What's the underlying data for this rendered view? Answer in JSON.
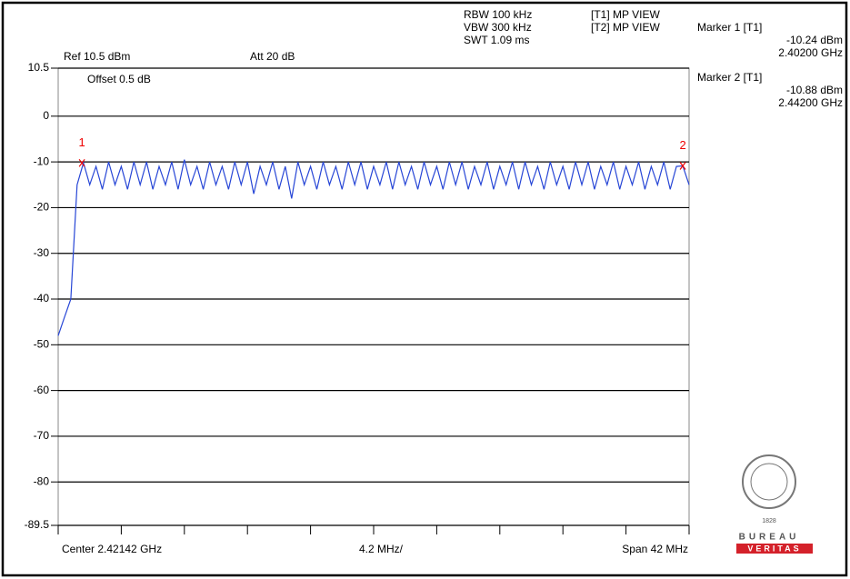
{
  "chart_data": {
    "type": "line",
    "header": {
      "rbw": "RBW 100 kHz",
      "vbw": "VBW 300 kHz",
      "swt": "SWT 1.09 ms",
      "trace1": "[T1] MP VIEW",
      "trace2": "[T2] MP VIEW",
      "ref": "Ref 10.5 dBm",
      "att": "Att  20 dB",
      "offset": "Offset 0.5 dB"
    },
    "footer": {
      "center": "Center 2.42142 GHz",
      "division": "4.2 MHz/",
      "span": "Span 42 MHz"
    },
    "logo": {
      "top": "BUREAU",
      "bottom": "VERITAS",
      "year": "1828"
    },
    "xlim": [
      2.40042,
      2.44242
    ],
    "xticks": [
      2.40042,
      2.40462,
      2.40882,
      2.41302,
      2.41722,
      2.42142,
      2.42562,
      2.42982,
      2.43402,
      2.43822,
      2.44242
    ],
    "ylim": [
      -89.5,
      10.5
    ],
    "yticks": [
      10.5,
      0,
      -10,
      -20,
      -30,
      -40,
      -50,
      -60,
      -70,
      -80,
      -89.5
    ],
    "grid": true,
    "x": [
      2.40042,
      2.40084,
      2.40126,
      2.40168,
      2.4021,
      2.40252,
      2.40294,
      2.40336,
      2.40378,
      2.4042,
      2.40462,
      2.40504,
      2.40546,
      2.40588,
      2.4063,
      2.40672,
      2.40714,
      2.40756,
      2.40798,
      2.4084,
      2.40882,
      2.40924,
      2.40966,
      2.41008,
      2.4105,
      2.41092,
      2.41134,
      2.41176,
      2.41218,
      2.4126,
      2.41302,
      2.41344,
      2.41386,
      2.41428,
      2.4147,
      2.41512,
      2.41554,
      2.41596,
      2.41638,
      2.4168,
      2.41722,
      2.41764,
      2.41806,
      2.41848,
      2.4189,
      2.41932,
      2.41974,
      2.42016,
      2.42058,
      2.421,
      2.42142,
      2.42184,
      2.42226,
      2.42268,
      2.4231,
      2.42352,
      2.42394,
      2.42436,
      2.42478,
      2.4252,
      2.42562,
      2.42604,
      2.42646,
      2.42688,
      2.4273,
      2.42772,
      2.42814,
      2.42856,
      2.42898,
      2.4294,
      2.42982,
      2.43024,
      2.43066,
      2.43108,
      2.4315,
      2.43192,
      2.43234,
      2.43276,
      2.43318,
      2.4336,
      2.43402,
      2.43444,
      2.43486,
      2.43528,
      2.4357,
      2.43612,
      2.43654,
      2.43696,
      2.43738,
      2.4378,
      2.43822,
      2.43864,
      2.43906,
      2.43948,
      2.4399,
      2.44032,
      2.44074,
      2.44116,
      2.44158,
      2.442,
      2.44242
    ],
    "series": [
      {
        "name": "[T1]",
        "color": "#2746d6",
        "values": [
          -48,
          -44,
          -40,
          -15,
          -10.2,
          -15,
          -11,
          -16,
          -10,
          -15,
          -11,
          -16,
          -10,
          -15,
          -10,
          -16,
          -11,
          -15,
          -10,
          -16,
          -9.5,
          -15,
          -11,
          -16,
          -10,
          -15,
          -11,
          -16,
          -10,
          -15,
          -10,
          -17,
          -11,
          -15,
          -10,
          -16,
          -11,
          -18,
          -10,
          -15,
          -11,
          -16,
          -10,
          -15,
          -11,
          -16,
          -10,
          -15,
          -10,
          -16,
          -11,
          -15,
          -10,
          -16,
          -10,
          -15,
          -11,
          -16,
          -10,
          -15,
          -11,
          -16,
          -10,
          -15,
          -10,
          -16,
          -11,
          -15,
          -10,
          -16,
          -11,
          -15,
          -10,
          -16,
          -10,
          -15,
          -11,
          -16,
          -10,
          -15,
          -11,
          -16,
          -10,
          -15,
          -10,
          -16,
          -11,
          -15,
          -10,
          -16,
          -11,
          -15,
          -10,
          -16,
          -11,
          -15,
          -10,
          -16,
          -11,
          -10.88,
          -15
        ]
      }
    ],
    "markers": [
      {
        "label": "1",
        "name": "Marker 1 [T1]",
        "x": 2.402,
        "value": -10.24,
        "value_label": "-10.24 dBm",
        "x_label": "2.40200 GHz"
      },
      {
        "label": "2",
        "name": "Marker 2 [T1]",
        "x": 2.442,
        "value": -10.88,
        "value_label": "-10.88 dBm",
        "x_label": "2.44200 GHz"
      }
    ]
  }
}
